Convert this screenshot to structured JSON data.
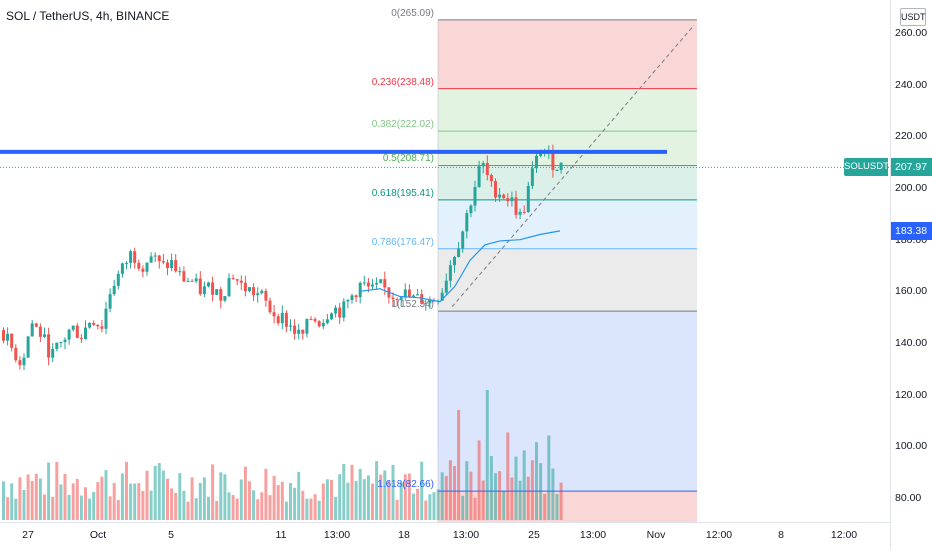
{
  "header": {
    "symbol_title": "SOL / TetherUS, 4h, BINANCE"
  },
  "price_axis": {
    "currency_label": "USDT",
    "ticks": [
      "260.00",
      "240.00",
      "220.00",
      "200.00",
      "180.00",
      "160.00",
      "140.00",
      "120.00",
      "100.00",
      "80.00"
    ],
    "tick_values": [
      260,
      240,
      220,
      200,
      180,
      160,
      140,
      120,
      100,
      80
    ]
  },
  "time_axis": {
    "ticks": [
      "27",
      "Oct",
      "5",
      "11",
      "13:00",
      "18",
      "13:00",
      "25",
      "13:00",
      "Nov",
      "12:00",
      "8",
      "12:00"
    ]
  },
  "symbol_tag": {
    "label": "SOLUSDT",
    "color": "#26a69a"
  },
  "price_tags": [
    {
      "label": "207.97",
      "value": 207.97,
      "color": "#26a69a"
    },
    {
      "label": "183.38",
      "value": 183.38,
      "color": "#2962ff"
    }
  ],
  "fibonacci": {
    "levels": [
      {
        "label": "0(265.09)",
        "ratio": 0,
        "price": 265.09,
        "color": "#787b86",
        "fill": "#f8c9c9"
      },
      {
        "label": "0.236(238.48)",
        "ratio": 0.236,
        "price": 238.48,
        "color": "#f23645",
        "fill": "#d8efd8"
      },
      {
        "label": "0.382(222.02)",
        "ratio": 0.382,
        "price": 222.02,
        "color": "#81c784",
        "fill": "#d8efd8"
      },
      {
        "label": "0.5(208.71)",
        "ratio": 0.5,
        "price": 208.71,
        "color": "#4caf50",
        "fill": "#cdebe0"
      },
      {
        "label": "0.618(195.41)",
        "ratio": 0.618,
        "price": 195.41,
        "color": "#089981",
        "fill": "#d9ecfb"
      },
      {
        "label": "0.786(176.47)",
        "ratio": 0.786,
        "price": 176.47,
        "color": "#64b5f6",
        "fill": "#e4e4e4"
      },
      {
        "label": "1(152.34)",
        "ratio": 1,
        "price": 152.34,
        "color": "#787b86",
        "fill": "#cfdcfa"
      },
      {
        "label": "1.618(82.66)",
        "ratio": 1.618,
        "price": 82.66,
        "color": "#2962ff",
        "fill": "#f8c9c9"
      }
    ]
  },
  "resistance_line": {
    "price": 214,
    "color": "#2962ff"
  },
  "colors": {
    "up": "#26a69a",
    "down": "#ef5350",
    "ma": "#2196f3"
  }
}
